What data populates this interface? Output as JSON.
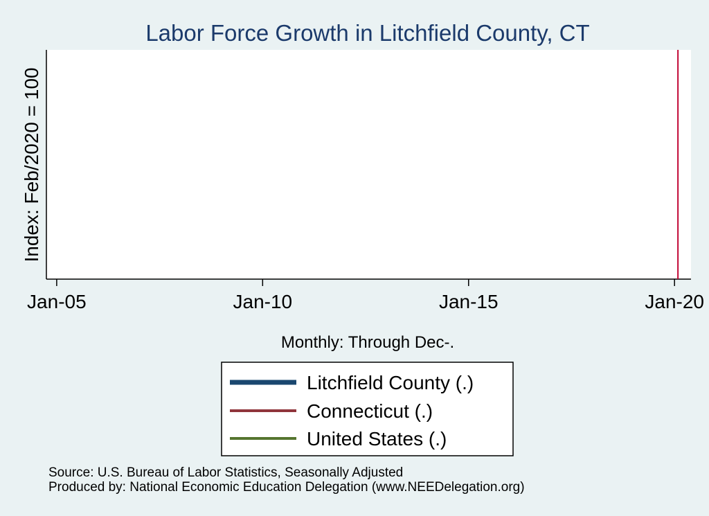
{
  "chart_data": {
    "type": "line",
    "title": "Labor Force Growth in Litchfield  County, CT",
    "xlabel": "Monthly: Through Dec-.",
    "ylabel": "Index: Feb/2020 = 100",
    "x_ticks": [
      "Jan-05",
      "Jan-10",
      "Jan-15",
      "Jan-20"
    ],
    "x_tick_values": [
      2005,
      2010,
      2015,
      2020
    ],
    "xlim": [
      2004.75,
      2020.4
    ],
    "grid": false,
    "legend_placement": "bottom",
    "series": [
      {
        "name": "Litchfield  County (.)",
        "color": "#1a476f",
        "values": []
      },
      {
        "name": "Connecticut (.)",
        "color": "#90353b",
        "values": []
      },
      {
        "name": "United States (.)",
        "color": "#55752f",
        "values": []
      }
    ],
    "reference_lines": [
      {
        "axis": "x",
        "value": 2020.083,
        "color": "#c10534"
      }
    ]
  },
  "footer": {
    "source": "Source: U.S. Bureau of Labor Statistics, Seasonally Adjusted",
    "produced_by": "Produced by: National Economic Education Delegation (www.NEEDelegation.org)"
  }
}
